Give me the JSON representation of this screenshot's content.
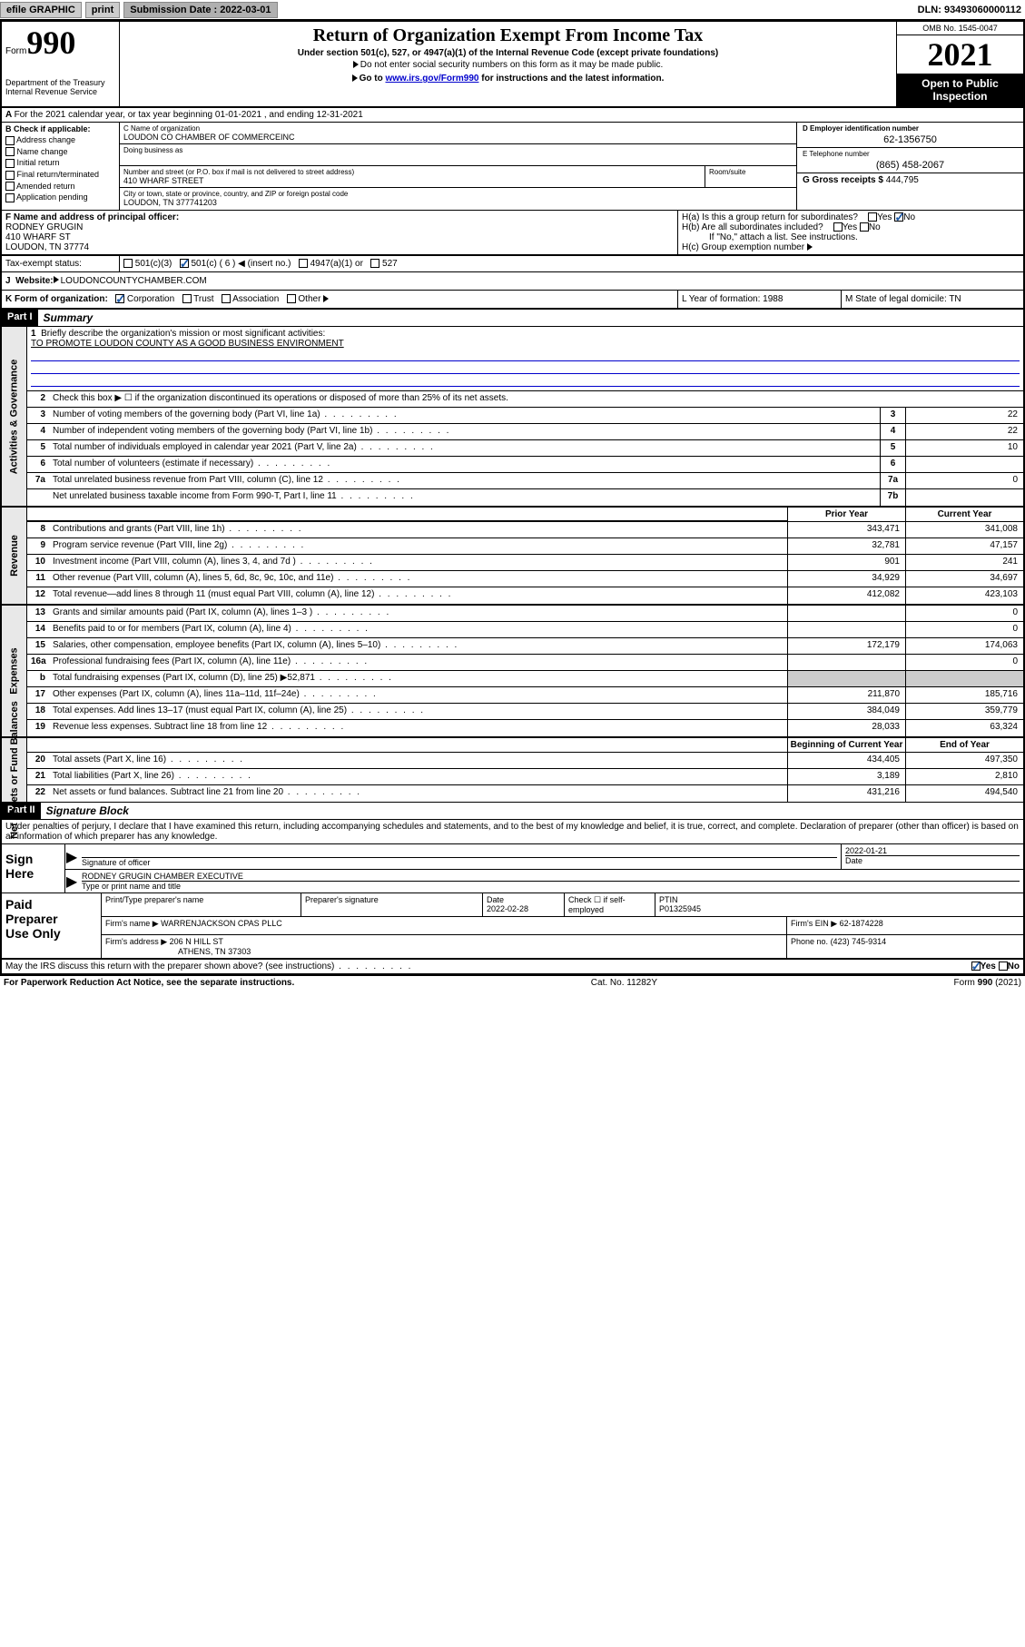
{
  "topbar": {
    "efile": "efile GRAPHIC",
    "print": "print",
    "sub_label": "Submission Date : 2022-03-01",
    "dln": "DLN: 93493060000112"
  },
  "header": {
    "form_prefix": "Form",
    "form_no": "990",
    "dept": "Department of the Treasury",
    "irs": "Internal Revenue Service",
    "title": "Return of Organization Exempt From Income Tax",
    "sub": "Under section 501(c), 527, or 4947(a)(1) of the Internal Revenue Code (except private foundations)",
    "note1": "Do not enter social security numbers on this form as it may be made public.",
    "note2_pre": "Go to ",
    "note2_link": "www.irs.gov/Form990",
    "note2_post": " for instructions and the latest information.",
    "omb": "OMB No. 1545-0047",
    "year": "2021",
    "inspect1": "Open to Public",
    "inspect2": "Inspection"
  },
  "line_a": "For the 2021 calendar year, or tax year beginning 01-01-2021   , and ending 12-31-2021",
  "col_b": {
    "hdr": "B Check if applicable:",
    "addr": "Address change",
    "name": "Name change",
    "init": "Initial return",
    "final": "Final return/terminated",
    "amend": "Amended return",
    "app": "Application pending"
  },
  "col_c": {
    "name_lbl": "C Name of organization",
    "name": "LOUDON CO CHAMBER OF COMMERCEINC",
    "dba_lbl": "Doing business as",
    "addr_lbl": "Number and street (or P.O. box if mail is not delivered to street address)",
    "room_lbl": "Room/suite",
    "addr": "410 WHARF STREET",
    "city_lbl": "City or town, state or province, country, and ZIP or foreign postal code",
    "city": "LOUDON, TN  377741203"
  },
  "col_de": {
    "d_lbl": "D Employer identification number",
    "d_val": "62-1356750",
    "e_lbl": "E Telephone number",
    "e_val": "(865) 458-2067",
    "g_lbl": "G Gross receipts $",
    "g_val": "444,795"
  },
  "col_f": {
    "lbl": "F Name and address of principal officer:",
    "name": "RODNEY GRUGIN",
    "addr": "410 WHARF ST",
    "city": "LOUDON, TN  37774"
  },
  "col_h": {
    "ha": "H(a)  Is this a group return for subordinates?",
    "hb": "H(b)  Are all subordinates included?",
    "hb_note": "If \"No,\" attach a list. See instructions.",
    "hc": "H(c)  Group exemption number",
    "yes": "Yes",
    "no": "No"
  },
  "row_i": {
    "lbl": "Tax-exempt status:",
    "o1": "501(c)(3)",
    "o2": "501(c) ( 6 )",
    "o2b": "(insert no.)",
    "o3": "4947(a)(1) or",
    "o4": "527"
  },
  "row_j": {
    "lbl": "Website:",
    "val": "LOUDONCOUNTYCHAMBER.COM"
  },
  "row_klm": {
    "k": "K Form of organization:",
    "k1": "Corporation",
    "k2": "Trust",
    "k3": "Association",
    "k4": "Other",
    "l": "L Year of formation: 1988",
    "m": "M State of legal domicile: TN"
  },
  "part1": {
    "hdr": "Part I",
    "title": "Summary",
    "q1": "Briefly describe the organization's mission or most significant activities:",
    "mission": "TO PROMOTE LOUDON COUNTY AS A GOOD BUSINESS ENVIRONMENT",
    "q2": "Check this box ▶ ☐  if the organization discontinued its operations or disposed of more than 25% of its net assets.",
    "rows_gov": [
      {
        "n": "3",
        "t": "Number of voting members of the governing body (Part VI, line 1a)",
        "box": "3",
        "v": "22"
      },
      {
        "n": "4",
        "t": "Number of independent voting members of the governing body (Part VI, line 1b)",
        "box": "4",
        "v": "22"
      },
      {
        "n": "5",
        "t": "Total number of individuals employed in calendar year 2021 (Part V, line 2a)",
        "box": "5",
        "v": "10"
      },
      {
        "n": "6",
        "t": "Total number of volunteers (estimate if necessary)",
        "box": "6",
        "v": ""
      },
      {
        "n": "7a",
        "t": "Total unrelated business revenue from Part VIII, column (C), line 12",
        "box": "7a",
        "v": "0"
      },
      {
        "n": "",
        "t": "Net unrelated business taxable income from Form 990-T, Part I, line 11",
        "box": "7b",
        "v": ""
      }
    ],
    "col_prior": "Prior Year",
    "col_curr": "Current Year",
    "rows_rev": [
      {
        "n": "8",
        "t": "Contributions and grants (Part VIII, line 1h)",
        "p": "343,471",
        "c": "341,008"
      },
      {
        "n": "9",
        "t": "Program service revenue (Part VIII, line 2g)",
        "p": "32,781",
        "c": "47,157"
      },
      {
        "n": "10",
        "t": "Investment income (Part VIII, column (A), lines 3, 4, and 7d )",
        "p": "901",
        "c": "241"
      },
      {
        "n": "11",
        "t": "Other revenue (Part VIII, column (A), lines 5, 6d, 8c, 9c, 10c, and 11e)",
        "p": "34,929",
        "c": "34,697"
      },
      {
        "n": "12",
        "t": "Total revenue—add lines 8 through 11 (must equal Part VIII, column (A), line 12)",
        "p": "412,082",
        "c": "423,103"
      }
    ],
    "rows_exp": [
      {
        "n": "13",
        "t": "Grants and similar amounts paid (Part IX, column (A), lines 1–3 )",
        "p": "",
        "c": "0"
      },
      {
        "n": "14",
        "t": "Benefits paid to or for members (Part IX, column (A), line 4)",
        "p": "",
        "c": "0"
      },
      {
        "n": "15",
        "t": "Salaries, other compensation, employee benefits (Part IX, column (A), lines 5–10)",
        "p": "172,179",
        "c": "174,063"
      },
      {
        "n": "16a",
        "t": "Professional fundraising fees (Part IX, column (A), line 11e)",
        "p": "",
        "c": "0"
      },
      {
        "n": "b",
        "t": "Total fundraising expenses (Part IX, column (D), line 25) ▶52,871",
        "p": "grey",
        "c": "grey"
      },
      {
        "n": "17",
        "t": "Other expenses (Part IX, column (A), lines 11a–11d, 11f–24e)",
        "p": "211,870",
        "c": "185,716"
      },
      {
        "n": "18",
        "t": "Total expenses. Add lines 13–17 (must equal Part IX, column (A), line 25)",
        "p": "384,049",
        "c": "359,779"
      },
      {
        "n": "19",
        "t": "Revenue less expenses. Subtract line 18 from line 12",
        "p": "28,033",
        "c": "63,324"
      }
    ],
    "col_beg": "Beginning of Current Year",
    "col_end": "End of Year",
    "rows_net": [
      {
        "n": "20",
        "t": "Total assets (Part X, line 16)",
        "p": "434,405",
        "c": "497,350"
      },
      {
        "n": "21",
        "t": "Total liabilities (Part X, line 26)",
        "p": "3,189",
        "c": "2,810"
      },
      {
        "n": "22",
        "t": "Net assets or fund balances. Subtract line 21 from line 20",
        "p": "431,216",
        "c": "494,540"
      }
    ],
    "side_gov": "Activities & Governance",
    "side_rev": "Revenue",
    "side_exp": "Expenses",
    "side_net": "Net Assets or Fund Balances"
  },
  "part2": {
    "hdr": "Part II",
    "title": "Signature Block",
    "intro": "Under penalties of perjury, I declare that I have examined this return, including accompanying schedules and statements, and to the best of my knowledge and belief, it is true, correct, and complete. Declaration of preparer (other than officer) is based on all information of which preparer has any knowledge."
  },
  "sign": {
    "left1": "Sign",
    "left2": "Here",
    "sig_lbl": "Signature of officer",
    "date": "2022-01-21",
    "date_lbl": "Date",
    "name": "RODNEY GRUGIN  CHAMBER EXECUTIVE",
    "name_lbl": "Type or print name and title"
  },
  "prep": {
    "left1": "Paid",
    "left2": "Preparer",
    "left3": "Use Only",
    "c1": "Print/Type preparer's name",
    "c2": "Preparer's signature",
    "c3_lbl": "Date",
    "c3": "2022-02-28",
    "c4": "Check ☐ if self-employed",
    "c5_lbl": "PTIN",
    "c5": "P01325945",
    "firm_lbl": "Firm's name    ▶",
    "firm": "WARRENJACKSON CPAS PLLC",
    "ein_lbl": "Firm's EIN ▶",
    "ein": "62-1874228",
    "addr_lbl": "Firm's address ▶",
    "addr1": "206 N HILL ST",
    "addr2": "ATHENS, TN  37303",
    "phone_lbl": "Phone no.",
    "phone": "(423) 745-9314"
  },
  "footer": {
    "q": "May the IRS discuss this return with the preparer shown above? (see instructions)",
    "yes": "Yes",
    "no": "No",
    "pra": "For Paperwork Reduction Act Notice, see the separate instructions.",
    "cat": "Cat. No. 11282Y",
    "form": "Form 990 (2021)"
  }
}
